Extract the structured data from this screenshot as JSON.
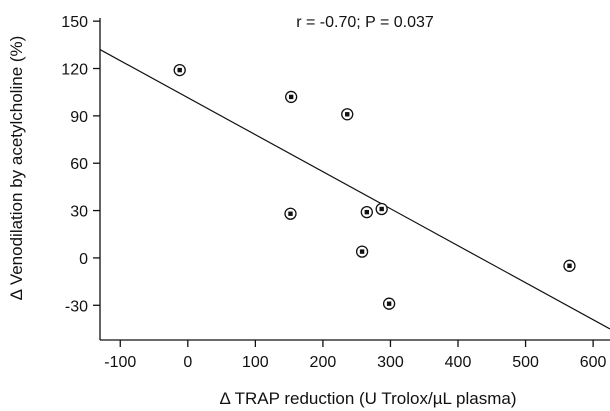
{
  "chart_data": {
    "type": "scatter",
    "title": "",
    "xlabel": "Δ TRAP reduction (U Trolox/µL plasma)",
    "ylabel": "Δ Venodilation by acetylcholine (%)",
    "xlim": [
      -130,
      625
    ],
    "ylim": [
      -52,
      152
    ],
    "x_ticks": [
      -100,
      0,
      100,
      200,
      300,
      400,
      500,
      600
    ],
    "y_ticks": [
      -30,
      0,
      30,
      60,
      90,
      120,
      150
    ],
    "grid": false,
    "annotation": "r = -0.70; P = 0.037",
    "series": [
      {
        "points": [
          {
            "x": -12,
            "y": 119
          },
          {
            "x": 153,
            "y": 102
          },
          {
            "x": 236,
            "y": 91
          },
          {
            "x": 152,
            "y": 28
          },
          {
            "x": 265,
            "y": 29
          },
          {
            "x": 287,
            "y": 31
          },
          {
            "x": 258,
            "y": 4
          },
          {
            "x": 298,
            "y": -29
          },
          {
            "x": 565,
            "y": -5
          }
        ]
      }
    ],
    "regression_line": {
      "x": [
        -130,
        625
      ],
      "y": [
        132,
        -45
      ]
    }
  }
}
